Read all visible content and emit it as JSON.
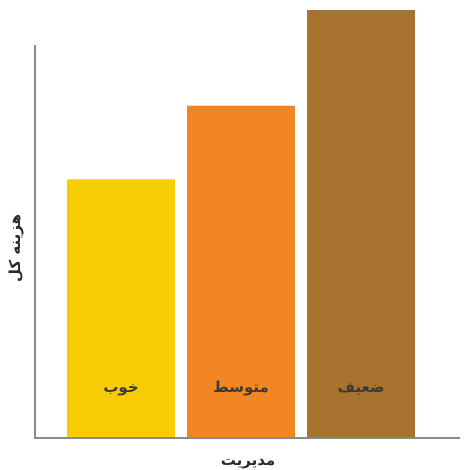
{
  "chart_data": {
    "type": "bar",
    "categories": [
      "خوب",
      "متوسط",
      "ضعیف"
    ],
    "values": [
      3.5,
      4.5,
      5.8
    ],
    "colors": [
      "#f9cd05",
      "#f28622",
      "#a8722f"
    ],
    "xlabel": "مدیریت",
    "ylabel": "هزینه کل",
    "ylim": [
      0,
      6
    ],
    "grid": false,
    "legend": "none",
    "tick_labels": false
  }
}
